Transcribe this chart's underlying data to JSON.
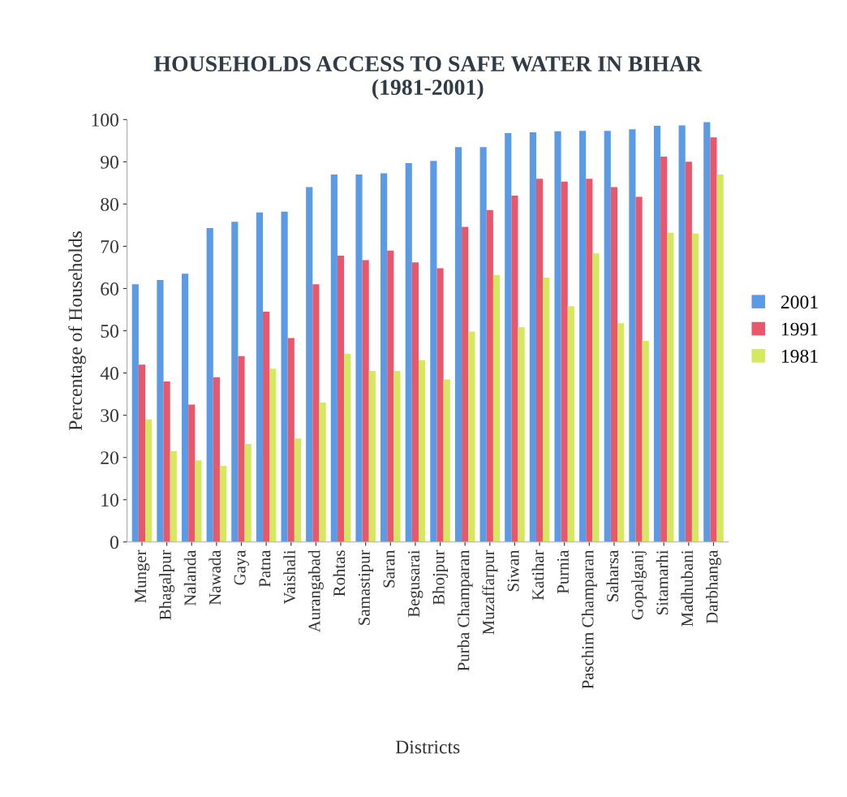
{
  "chart_data": {
    "type": "bar",
    "title": "HOUSEHOLDS ACCESS TO SAFE WATER IN BIHAR\n(1981-2001)",
    "xlabel": "Districts",
    "ylabel": "Percentage of Households",
    "categories": [
      "Munger",
      "Bhagalpur",
      "Nalanda",
      "Nawada",
      "Gaya",
      "Patna",
      "Vaishali",
      "Aurangabad",
      "Rohtas",
      "Samastipur",
      "Saran",
      "Begusarai",
      "Bhojpur",
      "Purba Champaran",
      "Muzaffarpur",
      "Siwan",
      "Katihar",
      "Purnia",
      "Paschim Champaran",
      "Saharsa",
      "Gopalganj",
      "Sitamarhi",
      "Madhubani",
      "Darbhanga"
    ],
    "series": [
      {
        "name": "2001",
        "color": "#5b9be6",
        "values": [
          61,
          62,
          63.5,
          74.3,
          75.8,
          78,
          78.2,
          84,
          87,
          87,
          87.3,
          89.7,
          90.2,
          93.5,
          93.5,
          96.8,
          97,
          97.2,
          97.3,
          97.3,
          97.7,
          98.5,
          98.6,
          99.4
        ]
      },
      {
        "name": "1991",
        "color": "#e8586a",
        "values": [
          42,
          38,
          32.5,
          39,
          44,
          54.5,
          48.3,
          61,
          67.8,
          66.7,
          69,
          66.2,
          64.8,
          74.6,
          78.6,
          82,
          86,
          85.3,
          86,
          84,
          81.7,
          91.2,
          90,
          95.8
        ]
      },
      {
        "name": "1981",
        "color": "#d4e860",
        "values": [
          29,
          21.5,
          19.3,
          18,
          23.2,
          41,
          24.5,
          33,
          44.6,
          40.5,
          40.5,
          43,
          38.5,
          49.8,
          63.2,
          50.8,
          62.6,
          55.8,
          68.3,
          51.8,
          47.6,
          73.2,
          73,
          87
        ]
      }
    ],
    "ylim": [
      0,
      100
    ],
    "yticks": [
      0,
      10,
      20,
      30,
      40,
      50,
      60,
      70,
      80,
      90,
      100
    ],
    "grid": false,
    "legend": "right"
  }
}
